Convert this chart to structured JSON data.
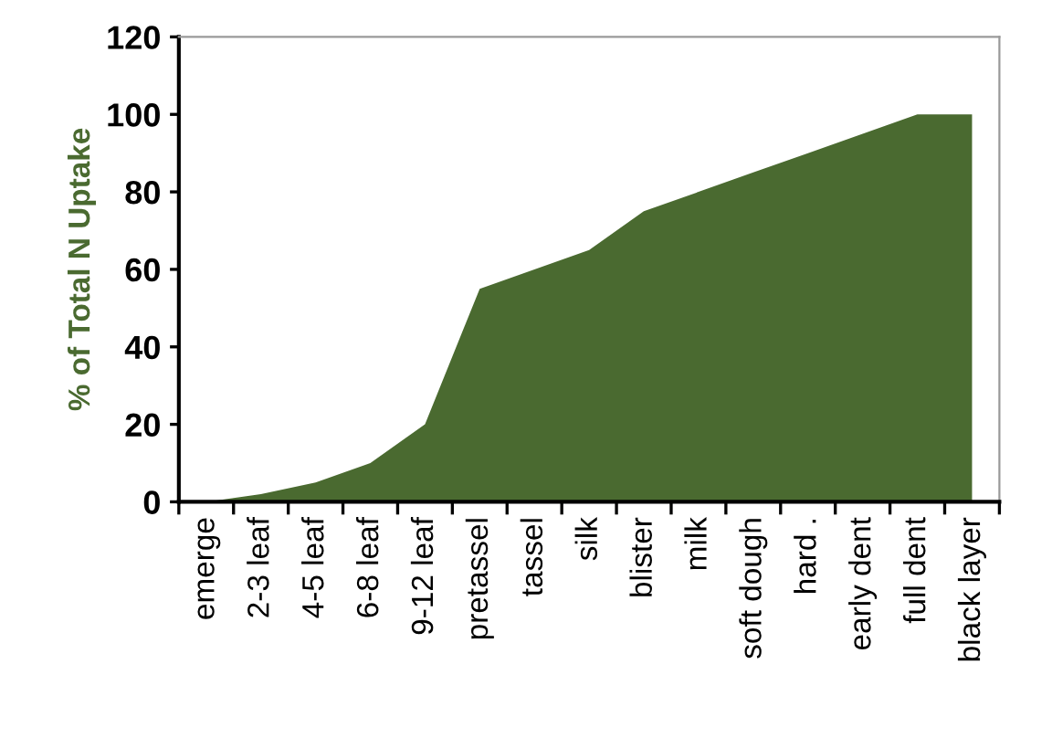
{
  "chart_data": {
    "type": "area",
    "ylabel": "% of Total N Uptake",
    "categories": [
      "emerge",
      "2-3 leaf",
      "4-5 leaf",
      "6-8 leaf",
      "9-12 leaf",
      "pretassel",
      "tassel",
      "silk",
      "blister",
      "milk",
      "soft dough",
      "hard .",
      "early dent",
      "full dent",
      "black layer"
    ],
    "series": [
      {
        "color": "#4a6a30",
        "values": [
          0,
          2,
          5,
          10,
          20,
          55,
          60,
          65,
          75,
          80,
          85,
          90,
          95,
          100,
          100
        ]
      }
    ],
    "ylim": [
      0,
      120
    ],
    "yticks": [
      0,
      20,
      40,
      60,
      80,
      100,
      120
    ],
    "grid": false,
    "legend": false
  }
}
